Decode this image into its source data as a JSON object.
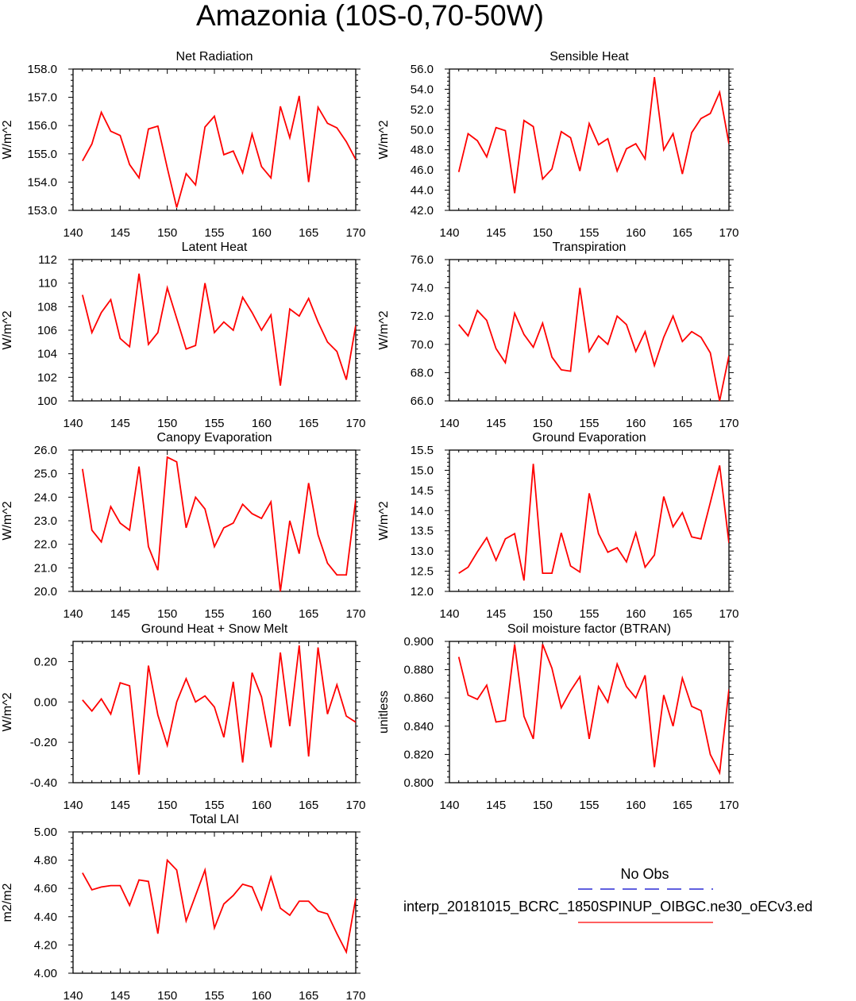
{
  "title": "Amazonia (10S-0,70-50W)",
  "legend": {
    "obs_label": "No Obs",
    "model_label": "interp_20181015_BCRC_1850SPINUP_OIBGC.ne30_oECv3.ed",
    "obs_color": "#0000cc",
    "model_color": "#ff0000"
  },
  "chart_data": [
    {
      "type": "line",
      "title": "Net Radiation",
      "ylabel": "W/m^2",
      "xlim": [
        140,
        170
      ],
      "ylim": [
        153.0,
        158.0
      ],
      "xticks": [
        "140",
        "145",
        "150",
        "155",
        "160",
        "165",
        "170"
      ],
      "yticks": [
        "153.0",
        "154.0",
        "155.0",
        "156.0",
        "157.0",
        "158.0"
      ],
      "x": [
        141,
        142,
        143,
        144,
        145,
        146,
        147,
        148,
        149,
        150,
        151,
        152,
        153,
        154,
        155,
        156,
        157,
        158,
        159,
        160,
        161,
        162,
        163,
        164,
        165,
        166,
        167,
        168,
        169,
        170
      ],
      "values": [
        154.75,
        155.35,
        156.47,
        155.8,
        155.65,
        154.62,
        154.15,
        155.88,
        155.98,
        154.5,
        153.1,
        154.3,
        153.9,
        155.95,
        156.33,
        154.97,
        155.1,
        154.33,
        155.7,
        154.55,
        154.15,
        156.68,
        155.57,
        157.05,
        154.0,
        156.65,
        156.08,
        155.92,
        155.43,
        154.8
      ],
      "color": "#ff0000"
    },
    {
      "type": "line",
      "title": "Sensible Heat",
      "ylabel": "W/m^2",
      "xlim": [
        140,
        170
      ],
      "ylim": [
        42.0,
        56.0
      ],
      "xticks": [
        "140",
        "145",
        "150",
        "155",
        "160",
        "165",
        "170"
      ],
      "yticks": [
        "42.0",
        "44.0",
        "46.0",
        "48.0",
        "50.0",
        "52.0",
        "54.0",
        "56.0"
      ],
      "x": [
        141,
        142,
        143,
        144,
        145,
        146,
        147,
        148,
        149,
        150,
        151,
        152,
        153,
        154,
        155,
        156,
        157,
        158,
        159,
        160,
        161,
        162,
        163,
        164,
        165,
        166,
        167,
        168,
        169,
        170
      ],
      "values": [
        45.8,
        49.6,
        48.9,
        47.3,
        50.2,
        49.9,
        43.7,
        50.9,
        50.3,
        45.1,
        46.1,
        49.8,
        49.2,
        45.9,
        50.6,
        48.5,
        49.1,
        45.9,
        48.1,
        48.6,
        47.1,
        55.2,
        48.0,
        49.6,
        45.6,
        49.7,
        51.1,
        51.6,
        53.7,
        48.6
      ],
      "color": "#ff0000"
    },
    {
      "type": "line",
      "title": "Latent Heat",
      "ylabel": "W/m^2",
      "xlim": [
        140,
        170
      ],
      "ylim": [
        100,
        112
      ],
      "xticks": [
        "140",
        "145",
        "150",
        "155",
        "160",
        "165",
        "170"
      ],
      "yticks": [
        "100",
        "102",
        "104",
        "106",
        "108",
        "110",
        "112"
      ],
      "x": [
        141,
        142,
        143,
        144,
        145,
        146,
        147,
        148,
        149,
        150,
        151,
        152,
        153,
        154,
        155,
        156,
        157,
        158,
        159,
        160,
        161,
        162,
        163,
        164,
        165,
        166,
        167,
        168,
        169,
        170
      ],
      "values": [
        109.0,
        105.8,
        107.5,
        108.6,
        105.3,
        104.6,
        110.8,
        104.8,
        105.8,
        109.6,
        107.0,
        104.4,
        104.7,
        110.0,
        105.8,
        106.7,
        106.0,
        108.8,
        107.5,
        106.0,
        107.3,
        101.3,
        107.8,
        107.2,
        108.7,
        106.7,
        105.0,
        104.2,
        101.8,
        106.4
      ],
      "color": "#ff0000"
    },
    {
      "type": "line",
      "title": "Transpiration",
      "ylabel": "W/m^2",
      "xlim": [
        140,
        170
      ],
      "ylim": [
        66.0,
        76.0
      ],
      "xticks": [
        "140",
        "145",
        "150",
        "155",
        "160",
        "165",
        "170"
      ],
      "yticks": [
        "66.0",
        "68.0",
        "70.0",
        "72.0",
        "74.0",
        "76.0"
      ],
      "x": [
        141,
        142,
        143,
        144,
        145,
        146,
        147,
        148,
        149,
        150,
        151,
        152,
        153,
        154,
        155,
        156,
        157,
        158,
        159,
        160,
        161,
        162,
        163,
        164,
        165,
        166,
        167,
        168,
        169,
        170
      ],
      "values": [
        71.4,
        70.6,
        72.4,
        71.7,
        69.7,
        68.7,
        72.2,
        70.7,
        69.8,
        71.5,
        69.1,
        68.2,
        68.1,
        74.0,
        69.5,
        70.6,
        70.0,
        72.0,
        71.4,
        69.5,
        70.9,
        68.5,
        70.5,
        72.0,
        70.2,
        70.9,
        70.5,
        69.4,
        66.0,
        69.2
      ],
      "color": "#ff0000"
    },
    {
      "type": "line",
      "title": "Canopy Evaporation",
      "ylabel": "W/m^2",
      "xlim": [
        140,
        170
      ],
      "ylim": [
        20.0,
        26.0
      ],
      "xticks": [
        "140",
        "145",
        "150",
        "155",
        "160",
        "165",
        "170"
      ],
      "yticks": [
        "20.0",
        "21.0",
        "22.0",
        "23.0",
        "24.0",
        "25.0",
        "26.0"
      ],
      "x": [
        141,
        142,
        143,
        144,
        145,
        146,
        147,
        148,
        149,
        150,
        151,
        152,
        153,
        154,
        155,
        156,
        157,
        158,
        159,
        160,
        161,
        162,
        163,
        164,
        165,
        166,
        167,
        168,
        169,
        170
      ],
      "values": [
        25.2,
        22.6,
        22.1,
        23.6,
        22.9,
        22.6,
        25.3,
        21.9,
        20.9,
        25.7,
        25.5,
        22.7,
        24.0,
        23.5,
        21.9,
        22.7,
        22.9,
        23.7,
        23.3,
        23.1,
        23.8,
        20.0,
        23.0,
        21.6,
        24.6,
        22.4,
        21.2,
        20.7,
        20.7,
        23.9
      ],
      "color": "#ff0000"
    },
    {
      "type": "line",
      "title": "Ground Evaporation",
      "ylabel": "W/m^2",
      "xlim": [
        140,
        170
      ],
      "ylim": [
        12.0,
        15.5
      ],
      "xticks": [
        "140",
        "145",
        "150",
        "155",
        "160",
        "165",
        "170"
      ],
      "yticks": [
        "12.0",
        "12.5",
        "13.0",
        "13.5",
        "14.0",
        "14.5",
        "15.0",
        "15.5"
      ],
      "x": [
        141,
        142,
        143,
        144,
        145,
        146,
        147,
        148,
        149,
        150,
        151,
        152,
        153,
        154,
        155,
        156,
        157,
        158,
        159,
        160,
        161,
        162,
        163,
        164,
        165,
        166,
        167,
        168,
        169,
        170
      ],
      "values": [
        12.45,
        12.6,
        12.98,
        13.33,
        12.77,
        13.3,
        13.43,
        12.27,
        15.16,
        12.45,
        12.45,
        13.45,
        12.63,
        12.48,
        14.43,
        13.43,
        12.97,
        13.08,
        12.73,
        13.45,
        12.6,
        12.9,
        14.35,
        13.6,
        13.95,
        13.35,
        13.3,
        14.2,
        15.12,
        13.2
      ],
      "color": "#ff0000"
    },
    {
      "type": "line",
      "title": "Ground Heat + Snow Melt",
      "ylabel": "W/m^2",
      "xlim": [
        140,
        170
      ],
      "ylim": [
        -0.4,
        0.3
      ],
      "xticks": [
        "140",
        "145",
        "150",
        "155",
        "160",
        "165",
        "170"
      ],
      "yticks": [
        "-0.40",
        "-0.20",
        "0.00",
        "0.20"
      ],
      "ytick_values": [
        -0.4,
        -0.2,
        0.0,
        0.2
      ],
      "x": [
        141,
        142,
        143,
        144,
        145,
        146,
        147,
        148,
        149,
        150,
        151,
        152,
        153,
        154,
        155,
        156,
        157,
        158,
        159,
        160,
        161,
        162,
        163,
        164,
        165,
        166,
        167,
        168,
        169,
        170
      ],
      "values": [
        0.01,
        -0.045,
        0.015,
        -0.06,
        0.095,
        0.08,
        -0.36,
        0.18,
        -0.065,
        -0.215,
        0.0,
        0.115,
        0.0,
        0.03,
        -0.025,
        -0.175,
        0.1,
        -0.3,
        0.145,
        0.025,
        -0.225,
        0.245,
        -0.12,
        0.28,
        -0.27,
        0.27,
        -0.06,
        0.085,
        -0.07,
        -0.1
      ],
      "color": "#ff0000"
    },
    {
      "type": "line",
      "title": "Soil moisture factor (BTRAN)",
      "ylabel": "unitless",
      "xlim": [
        140,
        170
      ],
      "ylim": [
        0.8,
        0.9
      ],
      "xticks": [
        "140",
        "145",
        "150",
        "155",
        "160",
        "165",
        "170"
      ],
      "yticks": [
        "0.800",
        "0.820",
        "0.840",
        "0.860",
        "0.880",
        "0.900"
      ],
      "x": [
        141,
        142,
        143,
        144,
        145,
        146,
        147,
        148,
        149,
        150,
        151,
        152,
        153,
        154,
        155,
        156,
        157,
        158,
        159,
        160,
        161,
        162,
        163,
        164,
        165,
        166,
        167,
        168,
        169,
        170
      ],
      "values": [
        0.889,
        0.862,
        0.859,
        0.869,
        0.843,
        0.844,
        0.898,
        0.847,
        0.831,
        0.898,
        0.881,
        0.853,
        0.865,
        0.875,
        0.831,
        0.868,
        0.857,
        0.884,
        0.868,
        0.86,
        0.876,
        0.811,
        0.862,
        0.84,
        0.874,
        0.854,
        0.851,
        0.82,
        0.807,
        0.866
      ],
      "color": "#ff0000"
    },
    {
      "type": "line",
      "title": "Total LAI",
      "ylabel": "m2/m2",
      "xlim": [
        140,
        170
      ],
      "ylim": [
        4.0,
        5.0
      ],
      "xticks": [
        "140",
        "145",
        "150",
        "155",
        "160",
        "165",
        "170"
      ],
      "yticks": [
        "4.00",
        "4.20",
        "4.40",
        "4.60",
        "4.80",
        "5.00"
      ],
      "x": [
        141,
        142,
        143,
        144,
        145,
        146,
        147,
        148,
        149,
        150,
        151,
        152,
        153,
        154,
        155,
        156,
        157,
        158,
        159,
        160,
        161,
        162,
        163,
        164,
        165,
        166,
        167,
        168,
        169,
        170
      ],
      "values": [
        4.71,
        4.59,
        4.61,
        4.62,
        4.62,
        4.48,
        4.66,
        4.65,
        4.28,
        4.8,
        4.73,
        4.37,
        4.55,
        4.73,
        4.32,
        4.49,
        4.55,
        4.63,
        4.61,
        4.45,
        4.68,
        4.46,
        4.41,
        4.51,
        4.51,
        4.44,
        4.42,
        4.28,
        4.15,
        4.53
      ],
      "color": "#ff0000"
    }
  ]
}
